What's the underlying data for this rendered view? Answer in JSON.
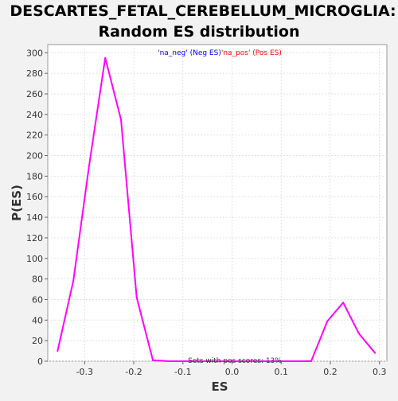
{
  "chart_data": {
    "type": "line",
    "title_line1": "DESCARTES_FETAL_CEREBELLUM_MICROGLIA:",
    "title_line2": "Random ES distribution",
    "xlabel": "ES",
    "ylabel": "P(ES)",
    "xlim": [
      -0.375,
      0.315
    ],
    "ylim": [
      0,
      308
    ],
    "xticks": [
      -0.3,
      -0.2,
      -0.1,
      0.0,
      0.1,
      0.2,
      0.3
    ],
    "xtick_labels": [
      "-0.3",
      "-0.2",
      "-0.1",
      "0.0",
      "0.1",
      "0.2",
      "0.3"
    ],
    "yticks": [
      0,
      20,
      40,
      60,
      80,
      100,
      120,
      140,
      160,
      180,
      200,
      220,
      240,
      260,
      280,
      300
    ],
    "grid": true,
    "legend": {
      "position": "top-center",
      "parts": [
        {
          "text": "'na_neg'",
          "color": "#0000ff"
        },
        {
          "text": " (Neg ES)",
          "color": "#0000ff"
        },
        {
          "text": "'na_pos'",
          "color": "#ff0000"
        },
        {
          "text": " (Pos ES)",
          "color": "#ff0000"
        }
      ]
    },
    "annotation": "Sets with pos scores: 13%",
    "series": [
      {
        "color": "#ff00ff",
        "x": [
          -0.355,
          -0.323,
          -0.291,
          -0.258,
          -0.226,
          -0.194,
          -0.161,
          -0.129,
          -0.097,
          -0.065,
          -0.032,
          0.0,
          0.032,
          0.065,
          0.097,
          0.129,
          0.161,
          0.194,
          0.226,
          0.258,
          0.291
        ],
        "y": [
          10,
          78,
          190,
          295,
          235,
          62,
          1,
          0,
          0,
          0,
          0,
          0,
          0,
          0,
          0,
          0,
          0,
          39,
          57,
          27,
          8
        ]
      }
    ]
  }
}
